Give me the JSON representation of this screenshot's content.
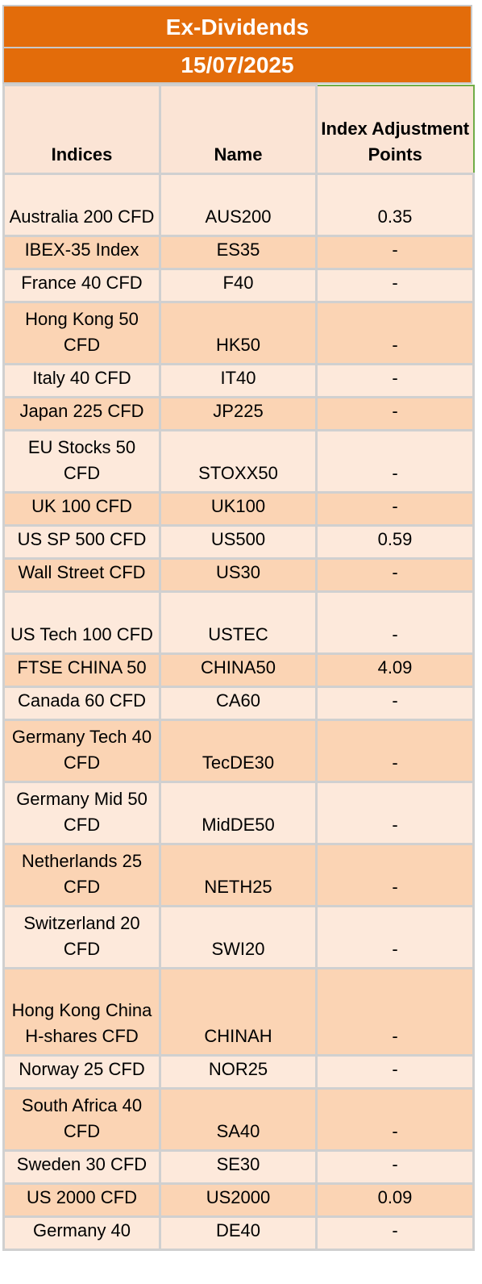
{
  "header": {
    "title": "Ex-Dividends",
    "date": "15/07/2025"
  },
  "table": {
    "columns": [
      "Indices",
      "Name",
      "Index Adjustment Points"
    ],
    "rows": [
      {
        "index": "Australia 200 CFD",
        "name": "AUS200",
        "points": "0.35"
      },
      {
        "index": "IBEX-35 Index",
        "name": "ES35",
        "points": "-"
      },
      {
        "index": "France 40 CFD",
        "name": "F40",
        "points": "-"
      },
      {
        "index": "Hong Kong 50 CFD",
        "name": "HK50",
        "points": "-"
      },
      {
        "index": "Italy 40 CFD",
        "name": "IT40",
        "points": "-"
      },
      {
        "index": "Japan 225 CFD",
        "name": "JP225",
        "points": "-"
      },
      {
        "index": "EU Stocks 50 CFD",
        "name": "STOXX50",
        "points": "-"
      },
      {
        "index": "UK 100 CFD",
        "name": "UK100",
        "points": "-"
      },
      {
        "index": "US SP 500 CFD",
        "name": "US500",
        "points": "0.59"
      },
      {
        "index": "Wall Street CFD",
        "name": "US30",
        "points": "-"
      },
      {
        "index": "US Tech 100 CFD",
        "name": "USTEC",
        "points": "-"
      },
      {
        "index": "FTSE CHINA 50",
        "name": "CHINA50",
        "points": "4.09"
      },
      {
        "index": "Canada 60 CFD",
        "name": "CA60",
        "points": "-"
      },
      {
        "index": "Germany Tech 40 CFD",
        "name": "TecDE30",
        "points": "-"
      },
      {
        "index": "Germany Mid 50 CFD",
        "name": "MidDE50",
        "points": "-"
      },
      {
        "index": "Netherlands 25 CFD",
        "name": "NETH25",
        "points": "-"
      },
      {
        "index": "Switzerland 20 CFD",
        "name": "SWI20",
        "points": "-"
      },
      {
        "index": "Hong Kong China H-shares CFD",
        "name": "CHINAH",
        "points": "-"
      },
      {
        "index": "Norway 25 CFD",
        "name": "NOR25",
        "points": "-"
      },
      {
        "index": "South Africa 40 CFD",
        "name": "SA40",
        "points": "-"
      },
      {
        "index": "Sweden 30 CFD",
        "name": "SE30",
        "points": "-"
      },
      {
        "index": "US 2000 CFD",
        "name": "US2000",
        "points": "0.09"
      },
      {
        "index": "Germany 40",
        "name": "DE40",
        "points": "-"
      }
    ]
  },
  "colors": {
    "header_orange": "#e36c0a",
    "row_light": "#fde9db",
    "row_dark": "#fbd4b4"
  }
}
